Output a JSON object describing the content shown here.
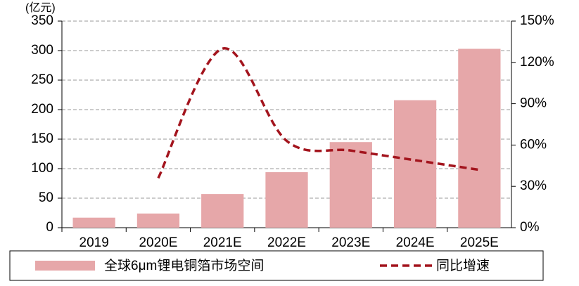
{
  "chart_data": {
    "type": "bar",
    "unit_label": "(亿元)",
    "categories": [
      "2019",
      "2020E",
      "2021E",
      "2022E",
      "2023E",
      "2024E",
      "2025E"
    ],
    "series": [
      {
        "name": "全球6μm锂电铜箔市场空间",
        "type": "bar",
        "color": "#e6a7a9",
        "values": [
          17,
          24,
          57,
          94,
          145,
          216,
          303
        ]
      },
      {
        "name": "同比增速",
        "type": "line",
        "axis": "y2",
        "color": "#a3141d",
        "dashed": true,
        "values": [
          null,
          36,
          130,
          63,
          56,
          49,
          42
        ]
      }
    ],
    "ylim": [
      0,
      350
    ],
    "yticks": [
      0,
      50,
      100,
      150,
      200,
      250,
      300,
      350
    ],
    "y2lim": [
      0,
      150
    ],
    "y2ticks": [
      {
        "value": 0,
        "label": "0%"
      },
      {
        "value": 30,
        "label": "30%"
      },
      {
        "value": 60,
        "label": "60%"
      },
      {
        "value": 90,
        "label": "90%"
      },
      {
        "value": 120,
        "label": "120%"
      },
      {
        "value": 150,
        "label": "150%"
      }
    ],
    "grid": true,
    "legend": "bottom"
  }
}
